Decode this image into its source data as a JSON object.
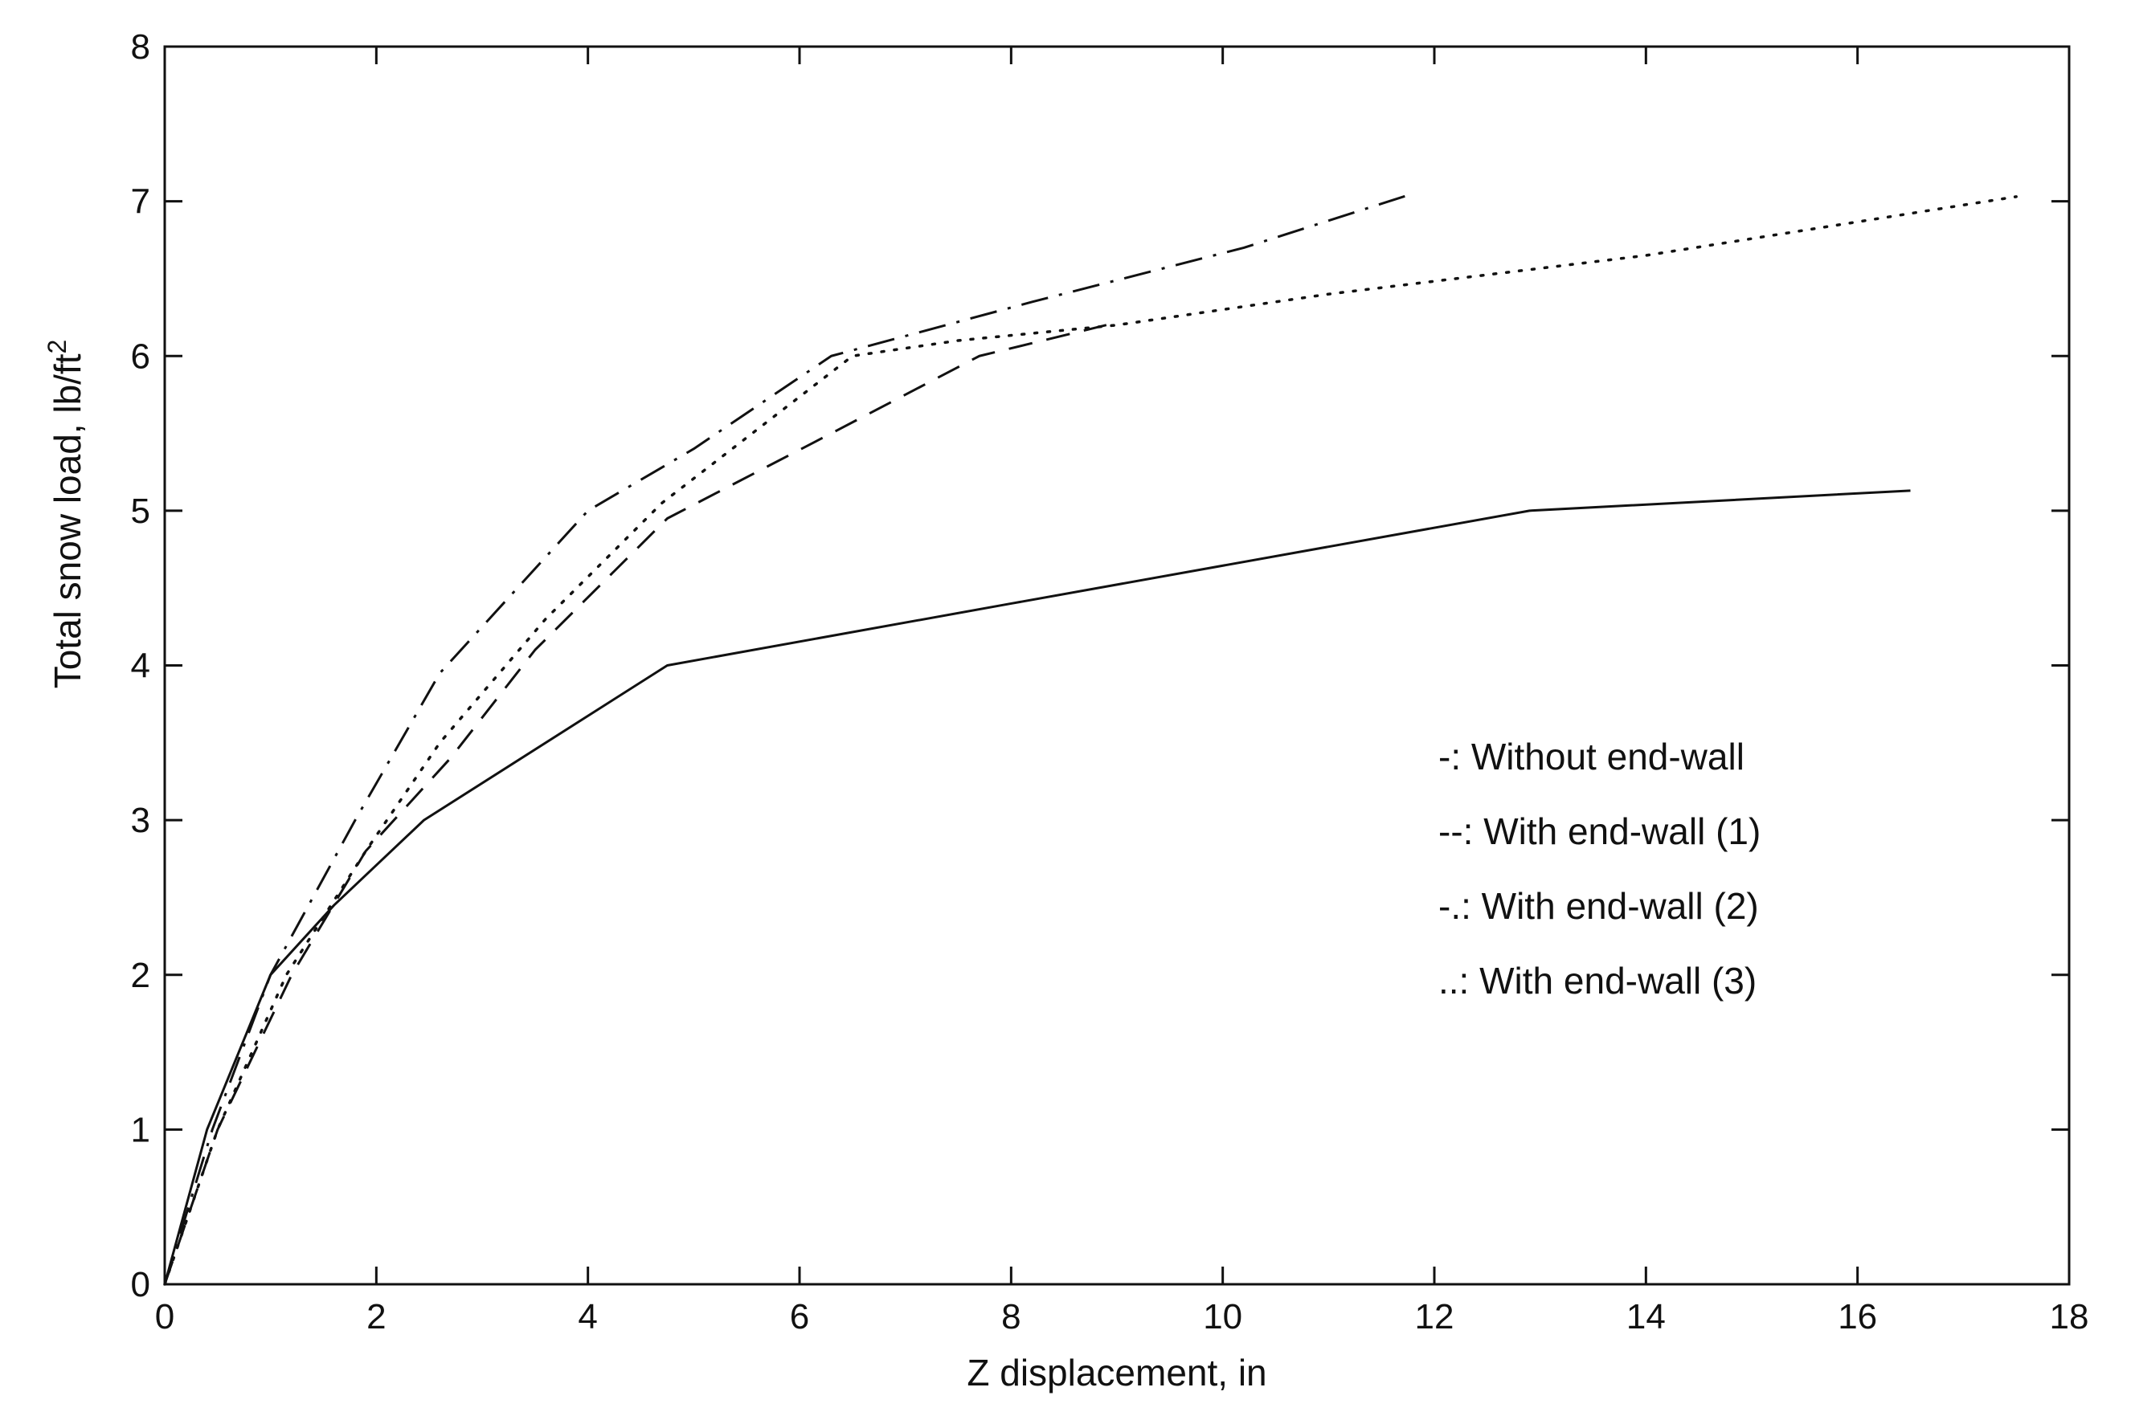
{
  "chart_data": {
    "type": "line",
    "title": "",
    "xlabel": "Z displacement, in",
    "ylabel_main": "Total snow load, lb/ft",
    "ylabel_sup": "2",
    "xlim": [
      0,
      18
    ],
    "ylim": [
      0,
      8
    ],
    "xticks": [
      0,
      2,
      4,
      6,
      8,
      10,
      12,
      14,
      16,
      18
    ],
    "yticks": [
      0,
      1,
      2,
      3,
      4,
      5,
      6,
      7,
      8
    ],
    "grid": false,
    "legend_position": "right-center",
    "series": [
      {
        "name": "Without end-wall",
        "legend_label": "-: Without end-wall",
        "style": "solid",
        "x": [
          0,
          0.4,
          1.0,
          1.6,
          2.45,
          4.75,
          8.0,
          12.9,
          16.5
        ],
        "y": [
          0,
          1.0,
          2.0,
          2.45,
          3.0,
          4.0,
          4.4,
          5.0,
          5.13
        ]
      },
      {
        "name": "With end-wall (1)",
        "legend_label": "--: With end-wall (1)",
        "style": "dashed",
        "x": [
          0,
          0.5,
          1.2,
          1.9,
          2.7,
          3.5,
          4.75,
          6.3,
          7.7,
          8.9
        ],
        "y": [
          0,
          1.0,
          2.0,
          2.8,
          3.4,
          4.1,
          4.95,
          5.5,
          6.0,
          6.2
        ]
      },
      {
        "name": "With end-wall (2)",
        "legend_label": "-.: With end-wall (2)",
        "style": "dashdot",
        "x": [
          0,
          0.45,
          1.0,
          1.8,
          2.6,
          4.0,
          5.0,
          6.3,
          8.2,
          10.2,
          11.8
        ],
        "y": [
          0,
          1.0,
          2.0,
          3.0,
          3.95,
          5.0,
          5.4,
          6.0,
          6.35,
          6.7,
          7.05
        ]
      },
      {
        "name": "With end-wall (3)",
        "legend_label": "..: With end-wall (3)",
        "style": "dotted",
        "x": [
          0,
          0.5,
          1.15,
          1.9,
          2.6,
          3.6,
          4.7,
          6.5,
          7.5,
          9.0,
          11.0,
          14.0,
          17.5
        ],
        "y": [
          0,
          1.0,
          2.0,
          2.8,
          3.5,
          4.3,
          5.05,
          6.0,
          6.1,
          6.2,
          6.4,
          6.65,
          7.03
        ]
      }
    ]
  }
}
